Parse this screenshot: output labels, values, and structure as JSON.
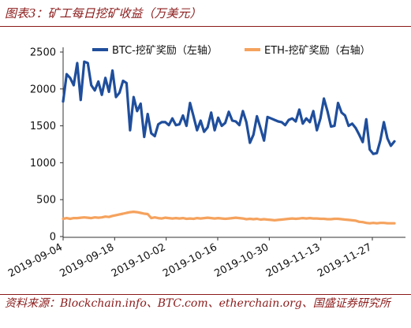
{
  "figure": {
    "title": "图表3：矿工每日挖矿收益（万美元）",
    "source": "资料来源：Blockchain.info、BTC.com、etherchain.org、国盛证券研究所"
  },
  "colors": {
    "btc": "#1f4e9c",
    "eth": "#f5a25d",
    "accent": "#8b1a1a"
  },
  "chart_data": {
    "type": "line",
    "title": "",
    "xlabel": "",
    "ylabel": "",
    "y_left_ticks": [
      0,
      500,
      1000,
      1500,
      2000,
      2500
    ],
    "ylim_left": [
      0,
      2500
    ],
    "ylim_right": [
      0,
      2500
    ],
    "right_axis_ticks_shown": false,
    "x_ticks": [
      "2019-09-04",
      "2019-09-18",
      "2019-10-02",
      "2019-10-16",
      "2019-10-30",
      "2019-11-13",
      "2019-11-27"
    ],
    "x_start": "2019-09-04",
    "x_end": "2019-12-03",
    "grid": false,
    "legend_position": "top",
    "series": [
      {
        "name": "BTC-挖矿奖励（左轴）",
        "axis": "left",
        "values": [
          1830,
          2200,
          2150,
          2050,
          2350,
          1850,
          2370,
          2350,
          2050,
          1980,
          2100,
          1920,
          2150,
          1960,
          2250,
          1890,
          1950,
          2110,
          2080,
          1440,
          1890,
          1700,
          1800,
          1350,
          1660,
          1400,
          1360,
          1520,
          1550,
          1550,
          1510,
          1600,
          1510,
          1520,
          1640,
          1500,
          1810,
          1630,
          1440,
          1570,
          1420,
          1480,
          1680,
          1440,
          1610,
          1500,
          1540,
          1690,
          1570,
          1560,
          1510,
          1700,
          1550,
          1270,
          1380,
          1630,
          1470,
          1300,
          1620,
          1600,
          1580,
          1560,
          1550,
          1510,
          1580,
          1600,
          1560,
          1720,
          1530,
          1600,
          1550,
          1700,
          1440,
          1600,
          1870,
          1700,
          1490,
          1500,
          1810,
          1680,
          1640,
          1500,
          1530,
          1470,
          1380,
          1280,
          1590,
          1180,
          1120,
          1130,
          1300,
          1550,
          1330,
          1230,
          1290
        ]
      },
      {
        "name": "ETH-挖矿奖励（右轴）",
        "axis": "right",
        "values": [
          240,
          250,
          240,
          250,
          250,
          255,
          260,
          255,
          250,
          260,
          255,
          260,
          270,
          265,
          280,
          290,
          300,
          310,
          320,
          330,
          335,
          330,
          320,
          310,
          305,
          250,
          260,
          250,
          245,
          255,
          250,
          245,
          250,
          245,
          250,
          240,
          245,
          240,
          250,
          245,
          250,
          255,
          250,
          245,
          250,
          245,
          240,
          245,
          250,
          255,
          250,
          245,
          235,
          240,
          235,
          240,
          230,
          235,
          230,
          225,
          220,
          225,
          230,
          235,
          240,
          245,
          240,
          245,
          250,
          245,
          250,
          245,
          245,
          240,
          240,
          235,
          235,
          240,
          240,
          235,
          230,
          225,
          220,
          215,
          200,
          195,
          185,
          180,
          185,
          180,
          185,
          185,
          180,
          180,
          180
        ]
      }
    ]
  }
}
